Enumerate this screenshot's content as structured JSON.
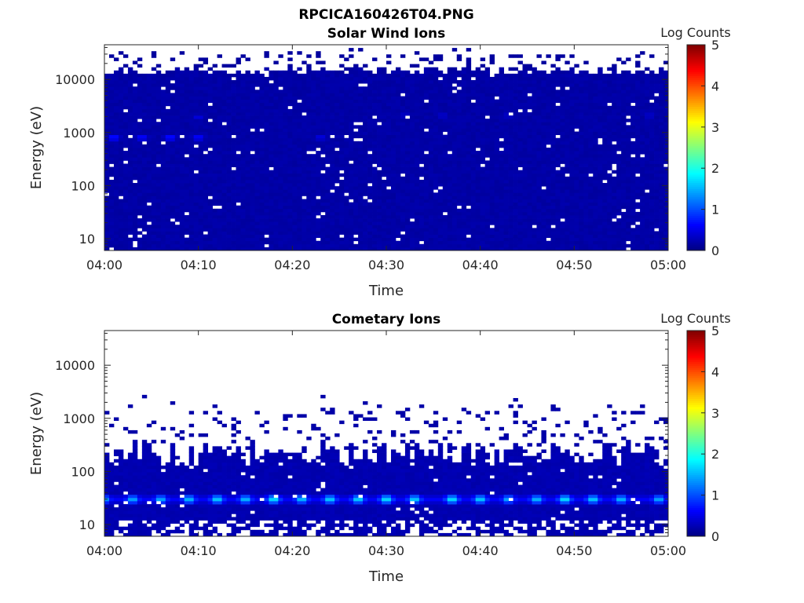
{
  "figure_title": "RPCICA160426T04.PNG",
  "colorbar_ticks": [
    "0",
    "1",
    "2",
    "3",
    "4",
    "5"
  ],
  "colorbar_label": "Log Counts",
  "chart_data": [
    {
      "type": "heatmap",
      "title": "Solar Wind Ions",
      "xlabel": "Time",
      "ylabel": "Energy (eV)",
      "x_ticks": [
        "04:00",
        "04:10",
        "04:20",
        "04:30",
        "04:40",
        "04:50",
        "05:00"
      ],
      "y_ticks": [
        "10",
        "100",
        "1000",
        "10000"
      ],
      "y_scale": "log",
      "ylim": [
        6,
        45000
      ],
      "xlim": [
        "04:00",
        "05:00"
      ],
      "colorbar": {
        "label": "Log Counts",
        "range": [
          0,
          5
        ],
        "colormap": "jet"
      },
      "background_level": 0.15,
      "upper_energy_edge_eV": 15000,
      "peaks": [
        {
          "time": "04:01",
          "energy_eV": 800,
          "log_counts": 0.9
        },
        {
          "time": "04:04",
          "energy_eV": 800,
          "log_counts": 0.8
        },
        {
          "time": "04:07",
          "energy_eV": 800,
          "log_counts": 0.9
        },
        {
          "time": "04:10",
          "energy_eV": 800,
          "log_counts": 0.8
        },
        {
          "time": "04:10",
          "energy_eV": 2000,
          "log_counts": 0.5
        },
        {
          "time": "04:23",
          "energy_eV": 800,
          "log_counts": 0.6
        },
        {
          "time": "04:32",
          "energy_eV": 2100,
          "log_counts": 0.5
        },
        {
          "time": "04:36",
          "energy_eV": 2100,
          "log_counts": 0.5
        },
        {
          "time": "04:43",
          "energy_eV": 2100,
          "log_counts": 0.5
        },
        {
          "time": "04:58",
          "energy_eV": 2100,
          "log_counts": 0.5
        }
      ]
    },
    {
      "type": "heatmap",
      "title": "Cometary Ions",
      "xlabel": "Time",
      "ylabel": "Energy (eV)",
      "x_ticks": [
        "04:00",
        "04:10",
        "04:20",
        "04:30",
        "04:40",
        "04:50",
        "05:00"
      ],
      "y_ticks": [
        "10",
        "100",
        "1000",
        "10000"
      ],
      "y_scale": "log",
      "ylim": [
        6,
        45000
      ],
      "xlim": [
        "04:00",
        "05:00"
      ],
      "colorbar": {
        "label": "Log Counts",
        "range": [
          0,
          5
        ],
        "colormap": "jet"
      },
      "background_level": 0.2,
      "dense_upper_edge_eV": 200,
      "band_energy_eV": 30,
      "band_peaks": [
        {
          "time": "04:00",
          "log_counts": 1.4
        },
        {
          "time": "04:03",
          "log_counts": 1.5
        },
        {
          "time": "04:06",
          "log_counts": 1.5
        },
        {
          "time": "04:09",
          "log_counts": 1.6
        },
        {
          "time": "04:12",
          "log_counts": 1.7
        },
        {
          "time": "04:15",
          "log_counts": 1.6
        },
        {
          "time": "04:18",
          "log_counts": 1.8
        },
        {
          "time": "04:21",
          "log_counts": 1.6
        },
        {
          "time": "04:24",
          "log_counts": 1.7
        },
        {
          "time": "04:27",
          "log_counts": 1.7
        },
        {
          "time": "04:30",
          "log_counts": 1.8
        },
        {
          "time": "04:33",
          "log_counts": 1.7
        },
        {
          "time": "04:37",
          "log_counts": 1.8
        },
        {
          "time": "04:40",
          "log_counts": 1.7
        },
        {
          "time": "04:43",
          "log_counts": 1.5
        },
        {
          "time": "04:46",
          "log_counts": 1.6
        },
        {
          "time": "04:49",
          "log_counts": 1.8
        },
        {
          "time": "04:52",
          "log_counts": 1.7
        },
        {
          "time": "04:55",
          "log_counts": 1.6
        },
        {
          "time": "04:59",
          "log_counts": 1.5
        }
      ]
    }
  ]
}
